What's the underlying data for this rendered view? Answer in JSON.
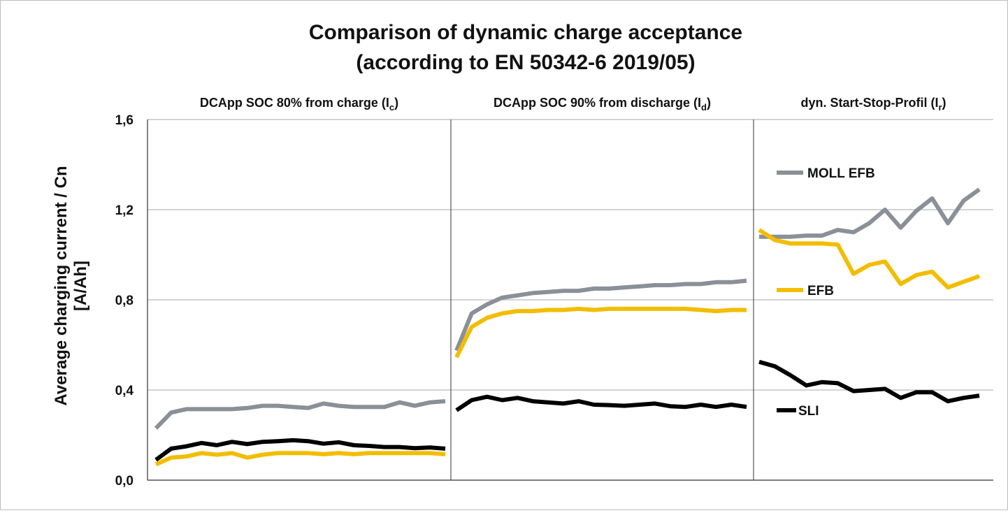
{
  "chart_data": {
    "type": "line",
    "title_line1": "Comparison of dynamic charge acceptance",
    "title_line2": "(according to EN 50342-6 2019/05)",
    "ylabel_line1": "Average charging current / Cn",
    "ylabel_line2": "[A/Ah]",
    "ylim": [
      0,
      1.6
    ],
    "y_ticks": [
      {
        "value": 0.0,
        "label": "0,0"
      },
      {
        "value": 0.4,
        "label": "0,4"
      },
      {
        "value": 0.8,
        "label": "0,8"
      },
      {
        "value": 1.2,
        "label": "1,2"
      },
      {
        "value": 1.6,
        "label": "1,6"
      }
    ],
    "grid": true,
    "colors": {
      "MOLL EFB": "#8a9097",
      "EFB": "#f2bd00",
      "SLI": "#000000"
    },
    "panels": [
      {
        "title_main": "DCApp SOC 80% from charge (I",
        "title_sub": "c",
        "title_end": ")",
        "series": [
          {
            "key": "MOLL EFB",
            "values": [
              0.23,
              0.3,
              0.315,
              0.315,
              0.315,
              0.315,
              0.32,
              0.33,
              0.33,
              0.325,
              0.32,
              0.34,
              0.33,
              0.325,
              0.325,
              0.325,
              0.345,
              0.33,
              0.345,
              0.35
            ]
          },
          {
            "key": "EFB",
            "values": [
              0.07,
              0.1,
              0.105,
              0.12,
              0.113,
              0.12,
              0.1,
              0.113,
              0.12,
              0.12,
              0.12,
              0.115,
              0.12,
              0.115,
              0.12,
              0.12,
              0.12,
              0.12,
              0.12,
              0.115
            ]
          },
          {
            "key": "SLI",
            "values": [
              0.09,
              0.14,
              0.15,
              0.165,
              0.155,
              0.17,
              0.16,
              0.17,
              0.173,
              0.177,
              0.173,
              0.162,
              0.168,
              0.155,
              0.152,
              0.147,
              0.147,
              0.142,
              0.145,
              0.14
            ]
          }
        ]
      },
      {
        "title_main": "DCApp SOC 90% from discharge (I",
        "title_sub": "d",
        "title_end": ")",
        "series": [
          {
            "key": "MOLL EFB",
            "values": [
              0.575,
              0.74,
              0.78,
              0.81,
              0.82,
              0.83,
              0.835,
              0.84,
              0.84,
              0.85,
              0.85,
              0.855,
              0.86,
              0.865,
              0.865,
              0.87,
              0.87,
              0.878,
              0.878,
              0.885
            ]
          },
          {
            "key": "EFB",
            "values": [
              0.545,
              0.68,
              0.72,
              0.74,
              0.75,
              0.75,
              0.755,
              0.755,
              0.76,
              0.755,
              0.76,
              0.76,
              0.76,
              0.76,
              0.76,
              0.76,
              0.755,
              0.75,
              0.755,
              0.755
            ]
          },
          {
            "key": "SLI",
            "values": [
              0.31,
              0.355,
              0.37,
              0.355,
              0.365,
              0.35,
              0.345,
              0.34,
              0.35,
              0.335,
              0.333,
              0.33,
              0.335,
              0.34,
              0.328,
              0.325,
              0.335,
              0.325,
              0.335,
              0.325
            ]
          }
        ]
      },
      {
        "title_main": "dyn. Start-Stop-Profil (I",
        "title_sub": "r",
        "title_end": ")",
        "series": [
          {
            "key": "MOLL EFB",
            "values": [
              1.08,
              1.08,
              1.08,
              1.085,
              1.085,
              1.11,
              1.1,
              1.14,
              1.2,
              1.12,
              1.195,
              1.25,
              1.14,
              1.24,
              1.29
            ]
          },
          {
            "key": "EFB",
            "values": [
              1.11,
              1.065,
              1.05,
              1.05,
              1.05,
              1.045,
              0.915,
              0.955,
              0.97,
              0.87,
              0.91,
              0.925,
              0.855,
              0.88,
              0.905
            ]
          },
          {
            "key": "SLI",
            "values": [
              0.525,
              0.505,
              0.465,
              0.42,
              0.435,
              0.43,
              0.395,
              0.4,
              0.405,
              0.365,
              0.39,
              0.39,
              0.35,
              0.365,
              0.375
            ]
          }
        ]
      }
    ],
    "legend": [
      {
        "label": "MOLL EFB",
        "key": "MOLL EFB"
      },
      {
        "label": "EFB",
        "key": "EFB"
      },
      {
        "label": "SLI",
        "key": "SLI"
      }
    ]
  }
}
